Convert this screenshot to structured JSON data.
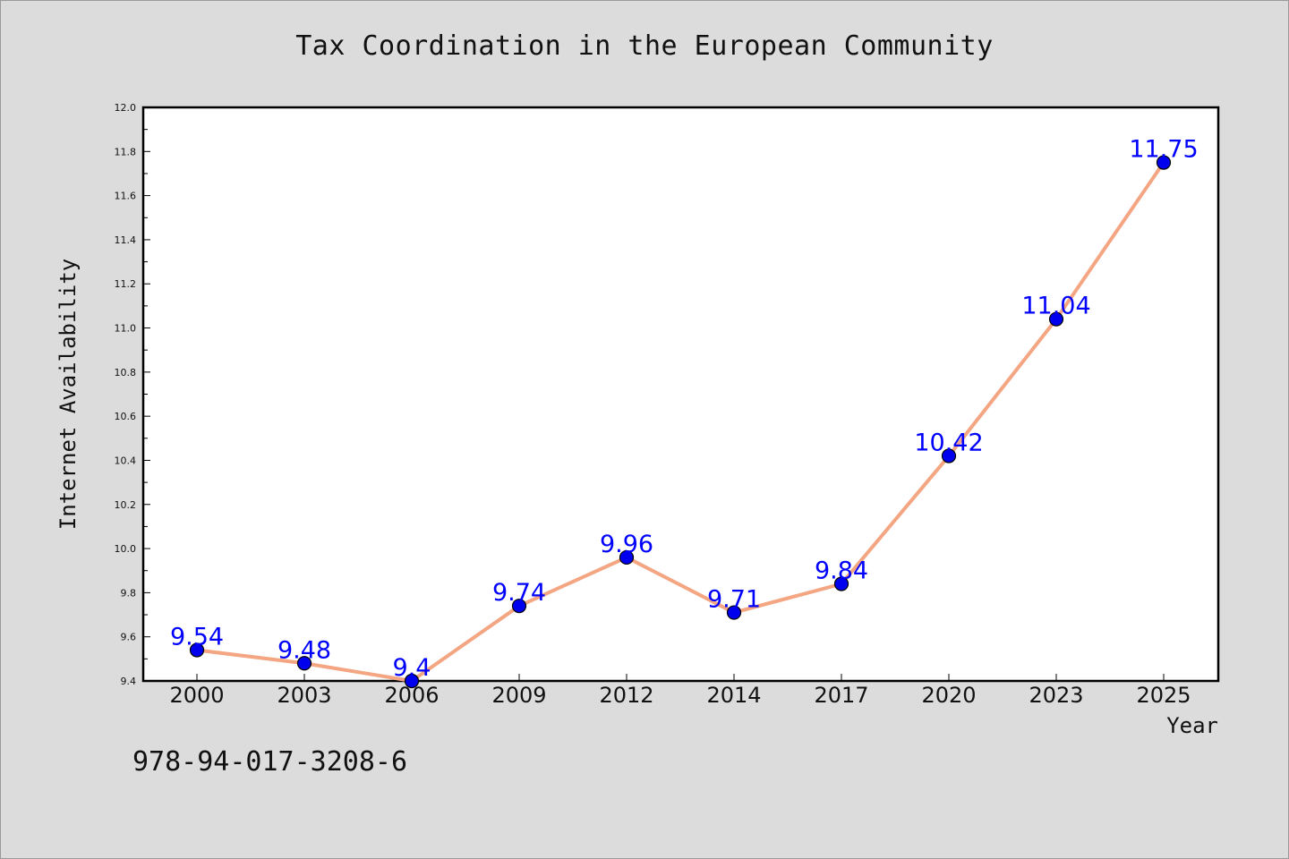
{
  "chart_data": {
    "type": "line",
    "title": "Tax Coordination in the European Community",
    "xlabel": "Year",
    "ylabel": "Internet Availability",
    "categories": [
      "2000",
      "2003",
      "2006",
      "2009",
      "2012",
      "2014",
      "2017",
      "2020",
      "2023",
      "2025"
    ],
    "values": [
      9.54,
      9.48,
      9.4,
      9.74,
      9.96,
      9.71,
      9.84,
      10.42,
      11.04,
      11.75
    ],
    "data_labels": [
      "9.54",
      "9.48",
      "9.4",
      "9.74",
      "9.96",
      "9.71",
      "9.84",
      "10.42",
      "11.04",
      "11.75"
    ],
    "ylim": [
      9.4,
      12.0
    ],
    "yticks": [
      "9.4",
      "9.6",
      "9.8",
      "10.0",
      "10.2",
      "10.4",
      "10.6",
      "10.8",
      "11.0",
      "11.2",
      "11.4",
      "11.6",
      "11.8",
      "12.0"
    ],
    "grid": false,
    "legend": "none",
    "colors": {
      "line": "#f4a582",
      "marker": "#0000ee",
      "data_label": "#0000ff",
      "background": "#dcdcdc",
      "plot_background": "#ffffff"
    }
  },
  "annotation": {
    "isbn": "978-94-017-3208-6"
  }
}
